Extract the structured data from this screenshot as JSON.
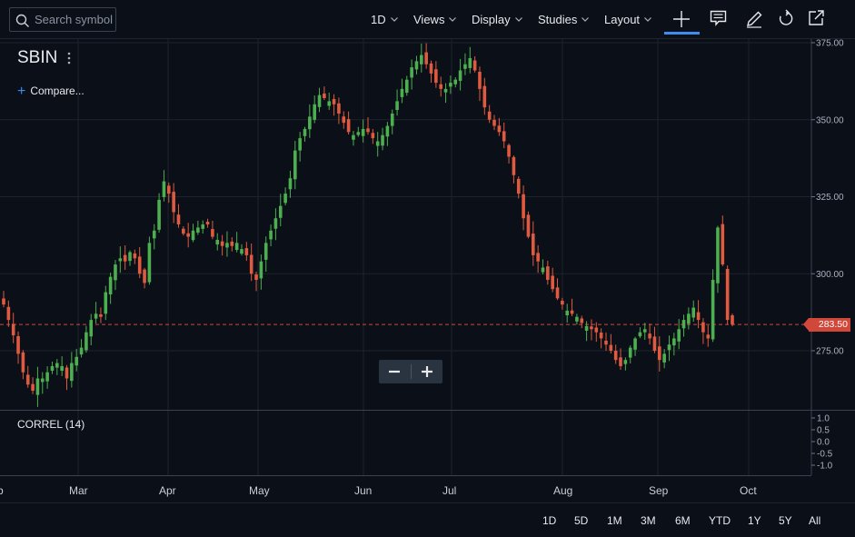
{
  "toolbar": {
    "search_placeholder": "Search symbol",
    "interval": "1D",
    "views": "Views",
    "display": "Display",
    "studies": "Studies",
    "layout": "Layout"
  },
  "symbol": "SBIN",
  "compare_label": "Compare...",
  "indicator_label": "CORREL (14)",
  "zoom": {
    "minus": "−",
    "plus": "+"
  },
  "last_price_label": "283.50",
  "range_buttons": [
    "1D",
    "5D",
    "1M",
    "3M",
    "6M",
    "YTD",
    "1Y",
    "5Y",
    "All"
  ],
  "colors": {
    "up": "#4caf50",
    "down": "#e05a3f",
    "last_price": "#d1483b",
    "accent": "#3d8cf0"
  },
  "chart_data": {
    "type": "candlestick",
    "symbol": "SBIN",
    "x_tick_labels": [
      "b",
      "Mar",
      "Apr",
      "May",
      "Jun",
      "Jul",
      "Aug",
      "Sep",
      "Oct"
    ],
    "y_ticks": [
      275,
      300,
      325,
      350,
      375
    ],
    "y_tick_labels": [
      "275.00",
      "300.00",
      "325.00",
      "350.00",
      "375.00"
    ],
    "ylim": [
      256,
      375
    ],
    "last_price": 283.5,
    "indicator": {
      "name": "CORREL (14)",
      "y_ticks": [
        1.0,
        0.5,
        0.0,
        -0.5,
        -1.0
      ],
      "y_tick_labels": [
        "1.0",
        "0.5",
        "0.0",
        "-0.5",
        "-1.0"
      ]
    },
    "closes": [
      290,
      285,
      280,
      274,
      268,
      264,
      262,
      266,
      266,
      268,
      270,
      271,
      270,
      266,
      271,
      273,
      276,
      281,
      285,
      287,
      286,
      294,
      299,
      303,
      305,
      304,
      307,
      305,
      300,
      297,
      310,
      314,
      324,
      330,
      326,
      320,
      316,
      313,
      312,
      314,
      315,
      316,
      316,
      312,
      311,
      309,
      310,
      309,
      310,
      308,
      306,
      300,
      298,
      304,
      310,
      314,
      318,
      322,
      326,
      331,
      340,
      344,
      347,
      351,
      355,
      358,
      357,
      356,
      355,
      352,
      349,
      346,
      345,
      346,
      347,
      346,
      344,
      343,
      345,
      348,
      352,
      356,
      360,
      363,
      367,
      369,
      371,
      368,
      365,
      362,
      360,
      360,
      362,
      363,
      366,
      368,
      370,
      366,
      360,
      354,
      350,
      348,
      346,
      343,
      338,
      332,
      326,
      318,
      312,
      306,
      304,
      302,
      298,
      295,
      292,
      290,
      288,
      287,
      286,
      284,
      283,
      282,
      281,
      279,
      277,
      275,
      272,
      270,
      272,
      276,
      279,
      281,
      282,
      279,
      275,
      272,
      274,
      277,
      279,
      282,
      285,
      287,
      289,
      285,
      281,
      279,
      298,
      315,
      303,
      285,
      283.5
    ]
  }
}
